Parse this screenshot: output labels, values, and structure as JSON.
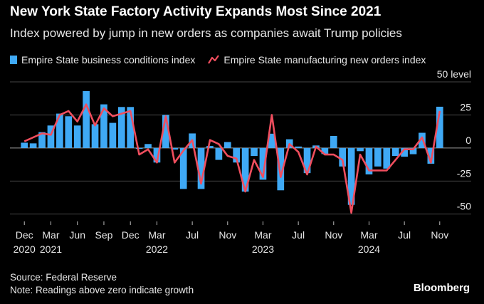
{
  "header": {
    "title": "New York State Factory Activity Expands Most Since 2021",
    "subtitle": "Index powered by jump in new orders as companies await Trump policies"
  },
  "legend": {
    "bar_label": "Empire State business conditions index",
    "line_label": "Empire State manufacturing new orders index"
  },
  "footer": {
    "source": "Source: Federal Reserve",
    "note": "Note: Readings above zero indicate growth",
    "brand": "Bloomberg"
  },
  "colors": {
    "bar": "#3fa9f5",
    "line": "#f04e5e",
    "background": "#000000",
    "grid": "#5a5a5a",
    "text": "#e6e6e6"
  },
  "chart_data": {
    "type": "bar+line",
    "title": "New York State Factory Activity Expands Most Since 2021",
    "subtitle": "Index powered by jump in new orders as companies await Trump policies",
    "ylabel": "level",
    "ylim": [
      -55,
      50
    ],
    "yticks": [
      50,
      25,
      0,
      -25,
      -50
    ],
    "ytick_labels": [
      "50 level",
      "25",
      "0",
      "-25",
      "-50"
    ],
    "grid": true,
    "x_tick_labels": [
      {
        "index": 0,
        "month": "Dec",
        "year": "2020"
      },
      {
        "index": 3,
        "month": "Mar",
        "year": "2021"
      },
      {
        "index": 6,
        "month": "Jun",
        "year": ""
      },
      {
        "index": 9,
        "month": "Sep",
        "year": ""
      },
      {
        "index": 12,
        "month": "Dec",
        "year": ""
      },
      {
        "index": 15,
        "month": "Mar",
        "year": "2022"
      },
      {
        "index": 19,
        "month": "Jul",
        "year": ""
      },
      {
        "index": 23,
        "month": "Nov",
        "year": ""
      },
      {
        "index": 27,
        "month": "Mar",
        "year": "2023"
      },
      {
        "index": 31,
        "month": "Jul",
        "year": ""
      },
      {
        "index": 35,
        "month": "Nov",
        "year": ""
      },
      {
        "index": 39,
        "month": "Mar",
        "year": "2024"
      },
      {
        "index": 43,
        "month": "Jul",
        "year": ""
      },
      {
        "index": 47,
        "month": "Nov",
        "year": ""
      }
    ],
    "categories": [
      "Dec 2020",
      "Jan 2021",
      "Feb 2021",
      "Mar 2021",
      "Apr 2021",
      "May 2021",
      "Jun 2021",
      "Jul 2021",
      "Aug 2021",
      "Sep 2021",
      "Oct 2021",
      "Nov 2021",
      "Dec 2021",
      "Jan 2022",
      "Feb 2022",
      "Mar 2022",
      "Apr 2022",
      "May 2022",
      "Jun 2022",
      "Jul 2022",
      "Aug 2022",
      "Sep 2022",
      "Oct 2022",
      "Nov 2022",
      "Dec 2022",
      "Jan 2023",
      "Feb 2023",
      "Mar 2023",
      "Apr 2023",
      "May 2023",
      "Jun 2023",
      "Jul 2023",
      "Aug 2023",
      "Sep 2023",
      "Oct 2023",
      "Nov 2023",
      "Dec 2023",
      "Jan 2024",
      "Feb 2024",
      "Mar 2024",
      "Apr 2024",
      "May 2024",
      "Jun 2024",
      "Jul 2024",
      "Aug 2024",
      "Sep 2024",
      "Oct 2024",
      "Nov 2024"
    ],
    "series": [
      {
        "name": "Empire State business conditions index",
        "type": "bar",
        "values": [
          4,
          3.5,
          12,
          17,
          26,
          24,
          17,
          43,
          18,
          33,
          19,
          31,
          31,
          -0.7,
          3,
          -11,
          25,
          -1.2,
          -31,
          11,
          -31,
          1.5,
          -9,
          4.5,
          -11,
          -33,
          -6,
          -24,
          10.8,
          -32,
          6.6,
          1.1,
          -19,
          1.9,
          -4.6,
          9.1,
          -14,
          -43,
          -2.4,
          -20,
          -14,
          -15.6,
          -6,
          -6.6,
          -4.7,
          11.5,
          -11.9,
          31.2
        ]
      },
      {
        "name": "Empire State manufacturing new orders index",
        "type": "line",
        "values": [
          5,
          8,
          11,
          10,
          25,
          28,
          20,
          33,
          17,
          30,
          24,
          26,
          28,
          -5,
          -1,
          -11,
          24,
          -11,
          -2,
          6,
          -27,
          6,
          3,
          -6,
          -8,
          -33,
          -9,
          -22,
          25,
          -22,
          3,
          -3,
          -20,
          1,
          -5,
          -5,
          -9,
          -49,
          -5,
          -17,
          -17,
          -17,
          -9,
          -1,
          -1,
          8,
          -11,
          28
        ]
      }
    ]
  }
}
